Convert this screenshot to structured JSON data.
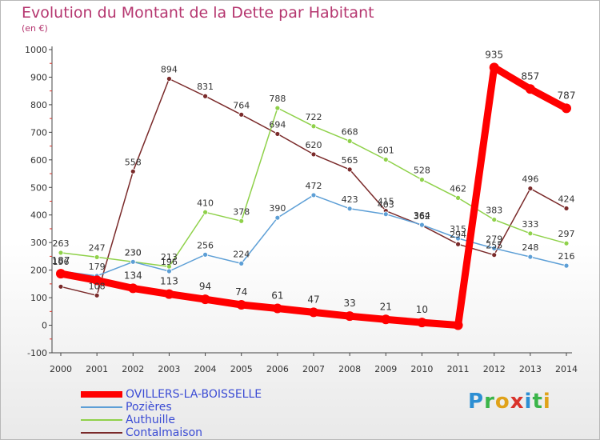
{
  "chart_data": {
    "type": "line",
    "title": "Evolution du Montant de la Dette par Habitant",
    "subtitle": "(en €)",
    "xlabel": "",
    "ylabel": "",
    "ylim": [
      -100,
      1000
    ],
    "yticks": [
      "1000",
      "900",
      "800",
      "700",
      "600",
      "500",
      "400",
      "300",
      "200",
      "100",
      "0",
      "-100"
    ],
    "categories": [
      "2000",
      "2001",
      "2002",
      "2003",
      "2004",
      "2005",
      "2006",
      "2007",
      "2008",
      "2009",
      "2010",
      "2011",
      "2012",
      "2013",
      "2014"
    ],
    "grid": false,
    "legend_position": "bottom-left",
    "series": [
      {
        "name": "OVILLERS-LA-BOISSELLE",
        "color": "#ff0000",
        "values": [
          187,
          163,
          134,
          113,
          94,
          74,
          61,
          47,
          33,
          21,
          10,
          0,
          935,
          857,
          787
        ],
        "labels": [
          "187",
          "",
          "134",
          "113",
          "94",
          "74",
          "61",
          "47",
          "33",
          "21",
          "10",
          "",
          "935",
          "857",
          "787"
        ]
      },
      {
        "name": "Pozières",
        "color": "#5d9fd6",
        "values": [
          196,
          179,
          230,
          196,
          256,
          224,
          390,
          472,
          423,
          403,
          364,
          315,
          279,
          248,
          216
        ],
        "labels": [
          "196",
          "179",
          "230",
          "196",
          "256",
          "224",
          "390",
          "472",
          "423",
          "403",
          "364",
          "315",
          "279",
          "248",
          "216"
        ]
      },
      {
        "name": "Authuille",
        "color": "#8fd14a",
        "values": [
          263,
          247,
          230,
          213,
          410,
          378,
          788,
          722,
          668,
          601,
          528,
          462,
          383,
          333,
          297
        ],
        "labels": [
          "263",
          "247",
          "230",
          "213",
          "410",
          "378",
          "788",
          "722",
          "668",
          "601",
          "528",
          "462",
          "383",
          "333",
          "297"
        ]
      },
      {
        "name": "Contalmaison",
        "color": "#7a2a2a",
        "values": [
          140,
          108,
          558,
          894,
          831,
          764,
          694,
          620,
          565,
          415,
          362,
          294,
          255,
          496,
          424
        ],
        "labels": [
          "",
          "108",
          "558",
          "894",
          "831",
          "764",
          "694",
          "620",
          "565",
          "415",
          "362",
          "294",
          "255",
          "496",
          "424"
        ]
      }
    ]
  },
  "logo": {
    "letters": [
      "P",
      "r",
      "o",
      "x",
      "i",
      "t",
      "i"
    ]
  }
}
